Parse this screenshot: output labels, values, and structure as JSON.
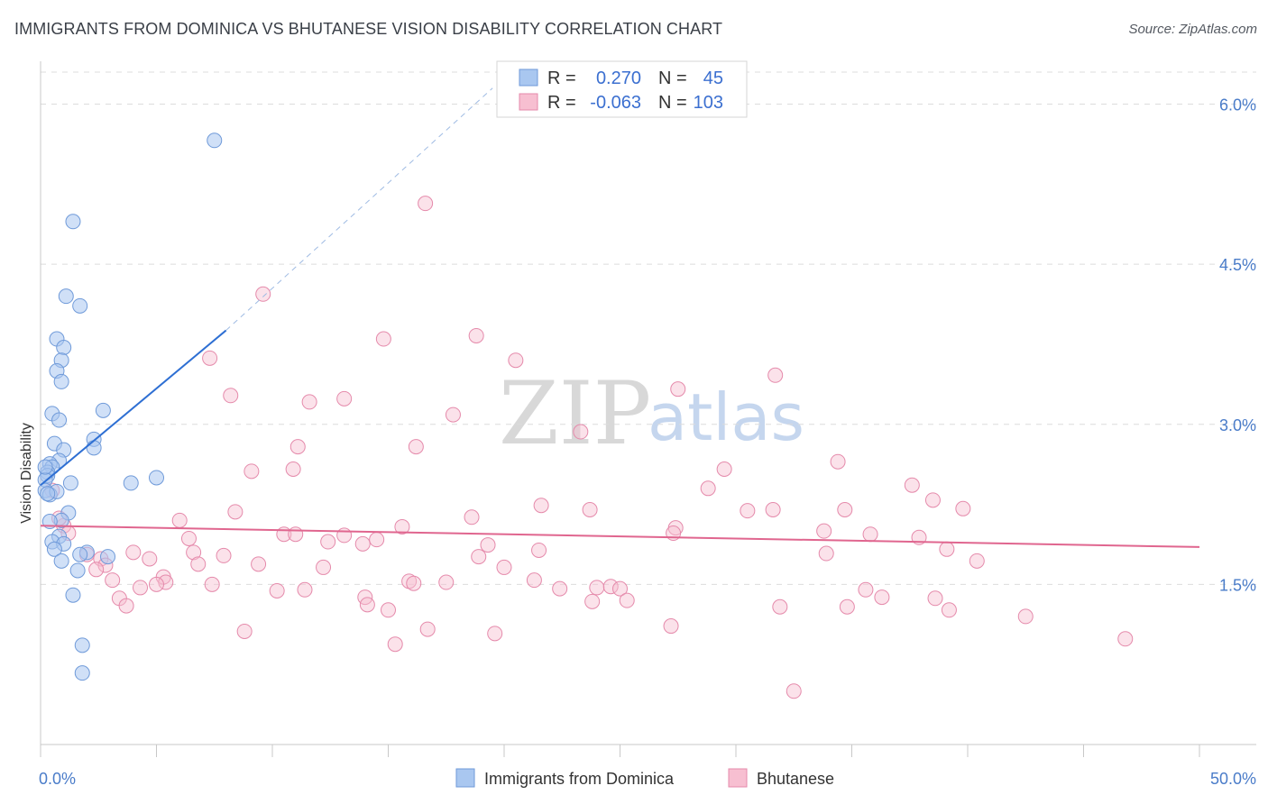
{
  "header": {
    "title": "IMMIGRANTS FROM DOMINICA VS BHUTANESE VISION DISABILITY CORRELATION CHART",
    "source": "Source: ZipAtlas.com"
  },
  "watermark": {
    "zip": "ZIP",
    "atlas": "atlas"
  },
  "colors": {
    "blue_fill": "#a9c7f0",
    "blue_stroke": "#6f9ad9",
    "blue_line": "#2e6fd3",
    "pink_fill": "#f7bfd1",
    "pink_stroke": "#e58aab",
    "pink_line": "#e0668f"
  },
  "stats": {
    "rows": [
      {
        "r_label": "R =",
        "r": "0.270",
        "n_label": "N =",
        "n": "45"
      },
      {
        "r_label": "R =",
        "r": "-0.063",
        "n_label": "N =",
        "n": "103"
      }
    ]
  },
  "legend": {
    "series1": "Immigrants from Dominica",
    "series2": "Bhutanese"
  },
  "chart_data": {
    "type": "scatter",
    "title": "IMMIGRANTS FROM DOMINICA VS BHUTANESE VISION DISABILITY CORRELATION CHART",
    "xlabel": "",
    "ylabel": "Vision Disability",
    "xlim": [
      0,
      50
    ],
    "ylim": [
      0,
      6.3
    ],
    "x_tick_labels": [
      "0.0%",
      "50.0%"
    ],
    "y_ticks": [
      1.5,
      3.0,
      4.5,
      6.0
    ],
    "y_tick_labels": [
      "1.5%",
      "3.0%",
      "4.5%",
      "6.0%"
    ],
    "series": [
      {
        "name": "Immigrants from Dominica",
        "R": 0.27,
        "N": 45,
        "trend": {
          "x0": 0.0,
          "y0": 2.43,
          "x1": 8.0,
          "y1": 3.88,
          "dash_to_x": 19.5,
          "dash_to_y": 6.15
        },
        "points": [
          [
            7.5,
            5.66
          ],
          [
            1.4,
            4.9
          ],
          [
            1.1,
            4.2
          ],
          [
            1.7,
            4.11
          ],
          [
            0.7,
            3.8
          ],
          [
            1.0,
            3.72
          ],
          [
            0.9,
            3.6
          ],
          [
            0.7,
            3.5
          ],
          [
            0.9,
            3.4
          ],
          [
            0.5,
            3.1
          ],
          [
            2.7,
            3.13
          ],
          [
            0.8,
            3.04
          ],
          [
            2.3,
            2.86
          ],
          [
            2.3,
            2.78
          ],
          [
            0.6,
            2.82
          ],
          [
            1.0,
            2.76
          ],
          [
            0.8,
            2.66
          ],
          [
            0.4,
            2.63
          ],
          [
            0.5,
            2.6
          ],
          [
            0.3,
            2.55
          ],
          [
            0.3,
            2.52
          ],
          [
            0.2,
            2.48
          ],
          [
            1.3,
            2.45
          ],
          [
            3.9,
            2.45
          ],
          [
            5.0,
            2.5
          ],
          [
            0.2,
            2.38
          ],
          [
            0.4,
            2.34
          ],
          [
            0.7,
            2.37
          ],
          [
            1.2,
            2.17
          ],
          [
            0.9,
            2.1
          ],
          [
            0.4,
            2.09
          ],
          [
            0.8,
            1.95
          ],
          [
            0.5,
            1.9
          ],
          [
            1.0,
            1.88
          ],
          [
            0.6,
            1.83
          ],
          [
            2.0,
            1.8
          ],
          [
            1.7,
            1.78
          ],
          [
            2.9,
            1.76
          ],
          [
            0.9,
            1.72
          ],
          [
            1.6,
            1.63
          ],
          [
            1.4,
            1.4
          ],
          [
            1.8,
            0.93
          ],
          [
            1.8,
            0.67
          ],
          [
            0.3,
            2.35
          ],
          [
            0.2,
            2.6
          ]
        ]
      },
      {
        "name": "Bhutanese",
        "R": -0.063,
        "N": 103,
        "trend": {
          "x0": 0.0,
          "y0": 2.05,
          "x1": 50.0,
          "y1": 1.85
        },
        "points": [
          [
            16.6,
            5.07
          ],
          [
            9.6,
            4.22
          ],
          [
            14.8,
            3.8
          ],
          [
            18.8,
            3.83
          ],
          [
            7.3,
            3.62
          ],
          [
            20.5,
            3.6
          ],
          [
            31.7,
            3.46
          ],
          [
            27.5,
            3.33
          ],
          [
            8.2,
            3.27
          ],
          [
            11.6,
            3.21
          ],
          [
            13.1,
            3.24
          ],
          [
            17.8,
            3.09
          ],
          [
            23.3,
            2.93
          ],
          [
            11.1,
            2.79
          ],
          [
            16.2,
            2.79
          ],
          [
            34.4,
            2.65
          ],
          [
            9.1,
            2.56
          ],
          [
            10.9,
            2.58
          ],
          [
            29.5,
            2.58
          ],
          [
            28.8,
            2.4
          ],
          [
            37.6,
            2.43
          ],
          [
            38.5,
            2.29
          ],
          [
            21.6,
            2.24
          ],
          [
            23.7,
            2.2
          ],
          [
            30.5,
            2.19
          ],
          [
            31.6,
            2.2
          ],
          [
            34.7,
            2.2
          ],
          [
            39.8,
            2.21
          ],
          [
            8.4,
            2.18
          ],
          [
            6.0,
            2.1
          ],
          [
            18.6,
            2.13
          ],
          [
            15.6,
            2.04
          ],
          [
            27.4,
            2.03
          ],
          [
            10.5,
            1.97
          ],
          [
            11.0,
            1.97
          ],
          [
            13.1,
            1.96
          ],
          [
            27.3,
            1.98
          ],
          [
            33.8,
            2.0
          ],
          [
            35.8,
            1.97
          ],
          [
            37.9,
            1.94
          ],
          [
            6.4,
            1.93
          ],
          [
            14.5,
            1.92
          ],
          [
            12.4,
            1.9
          ],
          [
            13.9,
            1.88
          ],
          [
            19.3,
            1.87
          ],
          [
            21.5,
            1.82
          ],
          [
            4.0,
            1.8
          ],
          [
            6.6,
            1.8
          ],
          [
            33.9,
            1.79
          ],
          [
            39.1,
            1.83
          ],
          [
            4.7,
            1.74
          ],
          [
            7.9,
            1.77
          ],
          [
            18.9,
            1.76
          ],
          [
            40.4,
            1.72
          ],
          [
            2.6,
            1.74
          ],
          [
            2.8,
            1.68
          ],
          [
            6.8,
            1.69
          ],
          [
            9.4,
            1.69
          ],
          [
            12.2,
            1.66
          ],
          [
            20.0,
            1.66
          ],
          [
            2.4,
            1.64
          ],
          [
            5.3,
            1.57
          ],
          [
            5.4,
            1.52
          ],
          [
            3.1,
            1.54
          ],
          [
            15.9,
            1.53
          ],
          [
            17.5,
            1.52
          ],
          [
            21.3,
            1.54
          ],
          [
            16.1,
            1.51
          ],
          [
            22.4,
            1.46
          ],
          [
            24.0,
            1.47
          ],
          [
            24.6,
            1.48
          ],
          [
            7.4,
            1.5
          ],
          [
            4.3,
            1.47
          ],
          [
            5.0,
            1.5
          ],
          [
            10.2,
            1.44
          ],
          [
            11.4,
            1.45
          ],
          [
            25.0,
            1.46
          ],
          [
            14.0,
            1.38
          ],
          [
            23.8,
            1.34
          ],
          [
            25.3,
            1.35
          ],
          [
            35.6,
            1.45
          ],
          [
            36.3,
            1.38
          ],
          [
            38.6,
            1.37
          ],
          [
            3.4,
            1.37
          ],
          [
            3.7,
            1.3
          ],
          [
            14.1,
            1.31
          ],
          [
            15.0,
            1.26
          ],
          [
            31.9,
            1.29
          ],
          [
            34.8,
            1.29
          ],
          [
            39.2,
            1.26
          ],
          [
            42.5,
            1.2
          ],
          [
            8.8,
            1.06
          ],
          [
            16.7,
            1.08
          ],
          [
            19.6,
            1.04
          ],
          [
            27.2,
            1.11
          ],
          [
            46.8,
            0.99
          ],
          [
            15.3,
            0.94
          ],
          [
            32.5,
            0.5
          ],
          [
            0.5,
            2.38
          ],
          [
            1.0,
            2.05
          ],
          [
            1.2,
            1.98
          ],
          [
            2.0,
            1.78
          ],
          [
            0.8,
            2.12
          ]
        ]
      }
    ]
  }
}
